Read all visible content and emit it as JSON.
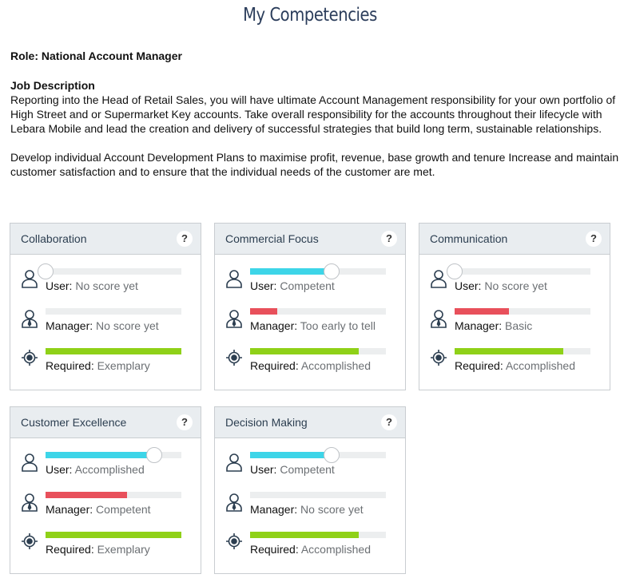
{
  "header": {
    "title": "My Competencies"
  },
  "role": "Role: National Account Manager",
  "job_description": {
    "heading": "Job Description",
    "paragraphs": [
      "Reporting into the Head of Retail Sales, you will have ultimate Account Management responsibility for your own portfolio of High Street and or Supermarket Key accounts. Take overall responsibility for the accounts throughout their lifecycle with Lebara Mobile and lead the creation and delivery of successful strategies that build long term, sustainable relationships.",
      "Develop individual Account Development Plans to maximise profit, revenue, base growth and tenure Increase and maintain customer satisfaction and to ensure that the individual needs of the customer are met."
    ]
  },
  "level_range": [
    0,
    100
  ],
  "row_colors": [
    "#3dd5e8",
    "#e8505b",
    "#8fd118"
  ],
  "cards": [
    {
      "title": "Collaboration",
      "help": "?",
      "rows": [
        {
          "label": "User:",
          "status": "No score yet",
          "level": 0
        },
        {
          "label": "Manager:",
          "status": "No score yet",
          "level": 0
        },
        {
          "label": "Required:",
          "status": "Exemplary",
          "level": 100
        }
      ]
    },
    {
      "title": "Commercial Focus",
      "help": "?",
      "rows": [
        {
          "label": "User:",
          "status": "Competent",
          "level": 60
        },
        {
          "label": "Manager:",
          "status": "Too early to tell",
          "level": 20
        },
        {
          "label": "Required:",
          "status": "Accomplished",
          "level": 80
        }
      ]
    },
    {
      "title": "Communication",
      "help": "?",
      "rows": [
        {
          "label": "User:",
          "status": "No score yet",
          "level": 0
        },
        {
          "label": "Manager:",
          "status": "Basic",
          "level": 40
        },
        {
          "label": "Required:",
          "status": "Accomplished",
          "level": 80
        }
      ]
    },
    {
      "title": "Customer Excellence",
      "help": "?",
      "rows": [
        {
          "label": "User:",
          "status": "Accomplished",
          "level": 80
        },
        {
          "label": "Manager:",
          "status": "Competent",
          "level": 60
        },
        {
          "label": "Required:",
          "status": "Exemplary",
          "level": 100
        }
      ]
    },
    {
      "title": "Decision Making",
      "help": "?",
      "rows": [
        {
          "label": "User:",
          "status": "Competent",
          "level": 60
        },
        {
          "label": "Manager:",
          "status": "No score yet",
          "level": 0
        },
        {
          "label": "Required:",
          "status": "Accomplished",
          "level": 80
        }
      ]
    }
  ]
}
